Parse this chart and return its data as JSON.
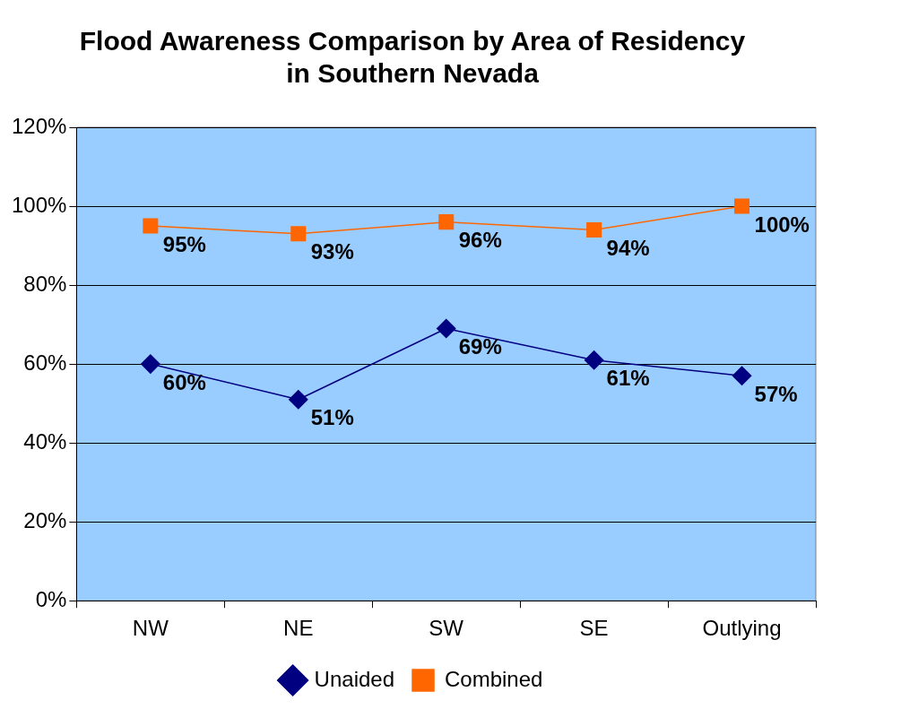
{
  "chart_data": {
    "type": "line",
    "title": [
      "Flood Awareness Comparison by Area of Residency",
      "in Southern Nevada"
    ],
    "categories": [
      "NW",
      "NE",
      "SW",
      "SE",
      "Outlying"
    ],
    "series": [
      {
        "name": "Unaided",
        "color": "#000080",
        "marker": "diamond",
        "values": [
          60,
          51,
          69,
          61,
          57
        ],
        "value_labels": [
          "60%",
          "51%",
          "69%",
          "61%",
          "57%"
        ]
      },
      {
        "name": "Combined",
        "color": "#ff6600",
        "marker": "square",
        "values": [
          95,
          93,
          96,
          94,
          100
        ],
        "value_labels": [
          "95%",
          "93%",
          "96%",
          "94%",
          "100%"
        ]
      }
    ],
    "ylim": [
      0,
      120
    ],
    "yticks": [
      {
        "value": 0,
        "label": "0%"
      },
      {
        "value": 20,
        "label": "20%"
      },
      {
        "value": 40,
        "label": "40%"
      },
      {
        "value": 60,
        "label": "60%"
      },
      {
        "value": 80,
        "label": "80%"
      },
      {
        "value": 100,
        "label": "100%"
      },
      {
        "value": 120,
        "label": "120%"
      }
    ],
    "grid": "y",
    "legend": "bottom"
  }
}
